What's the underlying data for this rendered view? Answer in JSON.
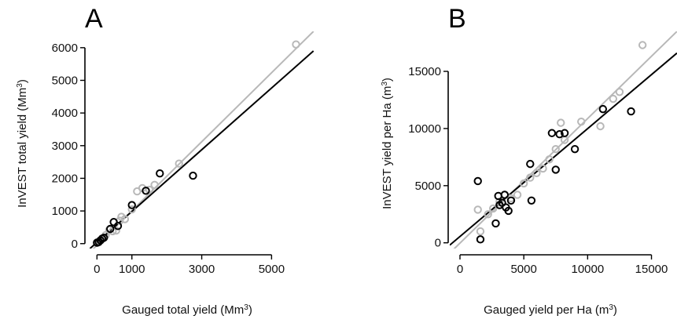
{
  "chart_data": [
    {
      "type": "scatter",
      "panel_label": "A",
      "xlabel": {
        "text": "Gauged total yield (Mm",
        "sup": "3",
        "after": ")"
      },
      "ylabel": {
        "text": "InVEST total yield (Mm",
        "sup": "3",
        "after": ")"
      },
      "xlim": [
        -300,
        6500
      ],
      "ylim": [
        -150,
        6500
      ],
      "xticks": [
        0,
        1000,
        3000,
        5000
      ],
      "xtick_labels": [
        "0",
        "1000",
        "3000",
        "5000"
      ],
      "yticks": [
        0,
        1000,
        2000,
        3000,
        4000,
        5000,
        6000
      ],
      "ytick_labels": [
        "0",
        "1000",
        "2000",
        "3000",
        "4000",
        "5000",
        "6000"
      ],
      "grid": false,
      "colors": {
        "series_light": "#b8b8b8",
        "series_dark": "#000000"
      },
      "series": [
        {
          "key": "light",
          "points": [
            [
              20,
              30
            ],
            [
              80,
              80
            ],
            [
              150,
              160
            ],
            [
              250,
              260
            ],
            [
              350,
              420
            ],
            [
              450,
              380
            ],
            [
              550,
              400
            ],
            [
              650,
              700
            ],
            [
              700,
              820
            ],
            [
              800,
              750
            ],
            [
              1000,
              1050
            ],
            [
              1150,
              1600
            ],
            [
              1300,
              1700
            ],
            [
              1500,
              1650
            ],
            [
              1650,
              1800
            ],
            [
              2350,
              2450
            ],
            [
              5700,
              6100
            ]
          ],
          "fit": [
            [
              -200,
              -260
            ],
            [
              6200,
              6500
            ]
          ]
        },
        {
          "key": "dark",
          "points": [
            [
              0,
              30
            ],
            [
              50,
              50
            ],
            [
              100,
              100
            ],
            [
              150,
              150
            ],
            [
              200,
              180
            ],
            [
              380,
              450
            ],
            [
              480,
              660
            ],
            [
              600,
              540
            ],
            [
              1000,
              1180
            ],
            [
              1400,
              1620
            ],
            [
              1800,
              2150
            ],
            [
              2750,
              2080
            ]
          ],
          "fit": [
            [
              -200,
              -150
            ],
            [
              6200,
              5900
            ]
          ]
        }
      ]
    },
    {
      "type": "scatter",
      "panel_label": "B",
      "xlabel": {
        "text": "Gauged yield per Ha (m",
        "sup": "3",
        "after": ")"
      },
      "ylabel": {
        "text": "InVEST yield per Ha (m",
        "sup": "3",
        "after": ")"
      },
      "xlim": [
        -800,
        17000
      ],
      "ylim": [
        -500,
        18500
      ],
      "xticks": [
        0,
        5000,
        10000,
        15000
      ],
      "xtick_labels": [
        "0",
        "5000",
        "10000",
        "15000"
      ],
      "yticks": [
        0,
        5000,
        10000,
        15000
      ],
      "ytick_labels": [
        "0",
        "5000",
        "10000",
        "15000"
      ],
      "grid": false,
      "colors": {
        "series_light": "#b8b8b8",
        "series_dark": "#000000"
      },
      "series": [
        {
          "key": "light",
          "points": [
            [
              1400,
              2900
            ],
            [
              1600,
              1000
            ],
            [
              2200,
              2500
            ],
            [
              2600,
              3000
            ],
            [
              3100,
              3600
            ],
            [
              3500,
              4200
            ],
            [
              4000,
              3900
            ],
            [
              4500,
              4200
            ],
            [
              5000,
              5200
            ],
            [
              5500,
              5700
            ],
            [
              6000,
              6100
            ],
            [
              6500,
              6500
            ],
            [
              7000,
              7300
            ],
            [
              7500,
              8200
            ],
            [
              7900,
              10500
            ],
            [
              8200,
              9000
            ],
            [
              9500,
              10600
            ],
            [
              11000,
              10200
            ],
            [
              12000,
              12600
            ],
            [
              12500,
              13200
            ],
            [
              14300,
              17300
            ]
          ],
          "fit": [
            [
              -800,
              -900
            ],
            [
              17000,
              18500
            ]
          ]
        },
        {
          "key": "dark",
          "points": [
            [
              1400,
              5400
            ],
            [
              1600,
              300
            ],
            [
              2800,
              1700
            ],
            [
              3000,
              4100
            ],
            [
              3100,
              3300
            ],
            [
              3300,
              3500
            ],
            [
              3500,
              4200
            ],
            [
              3600,
              3100
            ],
            [
              3800,
              2800
            ],
            [
              4000,
              3700
            ],
            [
              5500,
              6900
            ],
            [
              5600,
              3700
            ],
            [
              7200,
              9600
            ],
            [
              7500,
              6400
            ],
            [
              7800,
              9500
            ],
            [
              8200,
              9600
            ],
            [
              9000,
              8200
            ],
            [
              11200,
              11700
            ],
            [
              13400,
              11500
            ]
          ],
          "fit": [
            [
              -800,
              -200
            ],
            [
              17000,
              16600
            ]
          ]
        }
      ]
    }
  ]
}
